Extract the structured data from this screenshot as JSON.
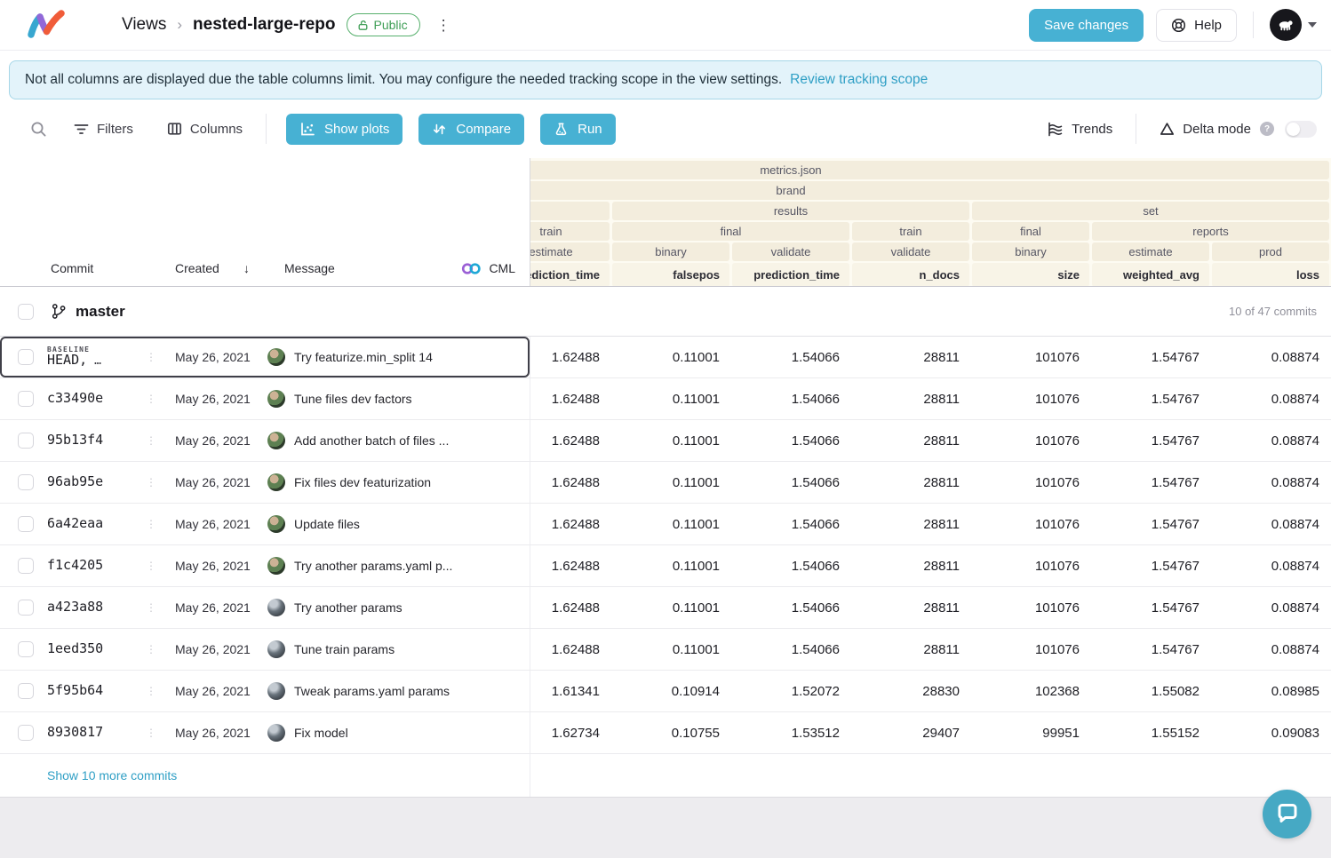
{
  "topbar": {
    "breadcrumb_root": "Views",
    "breadcrumb_separator": "›",
    "repo_name": "nested-large-repo",
    "visibility": "Public",
    "menu_glyph": "⋮",
    "save_button": "Save changes",
    "help_button": "Help"
  },
  "banner": {
    "text": "Not all columns are displayed due the table columns limit. You may configure the needed tracking scope in the view settings.",
    "link": "Review tracking scope"
  },
  "toolbar": {
    "filters": "Filters",
    "columns": "Columns",
    "show_plots": "Show plots",
    "compare": "Compare",
    "run": "Run",
    "trends": "Trends",
    "delta_mode": "Delta mode",
    "delta_toggle_state": "off"
  },
  "table": {
    "left_columns": {
      "commit": "Commit",
      "created": "Created",
      "sort_glyph": "↓",
      "message": "Message",
      "cml": "CML"
    },
    "header": {
      "groups": [
        [
          {
            "label": "metrics.json",
            "span": 7
          }
        ],
        [
          {
            "label": "brand",
            "span": 7
          }
        ],
        [
          {
            "label": "",
            "span": 1
          },
          {
            "label": "results",
            "span": 3
          },
          {
            "label": "set",
            "span": 3
          }
        ],
        [
          {
            "label": "train",
            "span": 1
          },
          {
            "label": "final",
            "span": 2
          },
          {
            "label": "train",
            "span": 1
          },
          {
            "label": "final",
            "span": 1
          },
          {
            "label": "reports",
            "span": 2
          }
        ],
        [
          {
            "label": "estimate",
            "span": 1
          },
          {
            "label": "binary",
            "span": 1
          },
          {
            "label": "validate",
            "span": 1
          },
          {
            "label": "validate",
            "span": 1
          },
          {
            "label": "binary",
            "span": 1
          },
          {
            "label": "estimate",
            "span": 1
          },
          {
            "label": "prod",
            "span": 1
          }
        ]
      ],
      "columns": [
        "prediction_time",
        "falsepos",
        "prediction_time",
        "n_docs",
        "size",
        "weighted_avg",
        "loss"
      ]
    },
    "branch": {
      "name": "master",
      "count_label": "10 of 47 commits"
    },
    "rows": [
      {
        "hash": "HEAD,",
        "tag": "BASELINE",
        "suffix": "…",
        "baseline": true,
        "date": "May 26, 2021",
        "avatar": "photo",
        "message": "Try featurize.min_split 14",
        "values": [
          "1.62488",
          "0.11001",
          "1.54066",
          "28811",
          "101076",
          "1.54767",
          "0.08874"
        ]
      },
      {
        "hash": "c33490e",
        "date": "May 26, 2021",
        "avatar": "photo",
        "message": "Tune files dev factors",
        "values": [
          "1.62488",
          "0.11001",
          "1.54066",
          "28811",
          "101076",
          "1.54767",
          "0.08874"
        ]
      },
      {
        "hash": "95b13f4",
        "date": "May 26, 2021",
        "avatar": "photo",
        "message": "Add another batch of files ...",
        "values": [
          "1.62488",
          "0.11001",
          "1.54066",
          "28811",
          "101076",
          "1.54767",
          "0.08874"
        ]
      },
      {
        "hash": "96ab95e",
        "date": "May 26, 2021",
        "avatar": "photo",
        "message": "Fix files dev featurization",
        "values": [
          "1.62488",
          "0.11001",
          "1.54066",
          "28811",
          "101076",
          "1.54767",
          "0.08874"
        ]
      },
      {
        "hash": "6a42eaa",
        "date": "May 26, 2021",
        "avatar": "photo",
        "message": "Update files",
        "values": [
          "1.62488",
          "0.11001",
          "1.54066",
          "28811",
          "101076",
          "1.54767",
          "0.08874"
        ]
      },
      {
        "hash": "f1c4205",
        "date": "May 26, 2021",
        "avatar": "photo",
        "message": "Try another params.yaml p...",
        "values": [
          "1.62488",
          "0.11001",
          "1.54066",
          "28811",
          "101076",
          "1.54767",
          "0.08874"
        ]
      },
      {
        "hash": "a423a88",
        "date": "May 26, 2021",
        "avatar": "dark",
        "message": "Try another params",
        "values": [
          "1.62488",
          "0.11001",
          "1.54066",
          "28811",
          "101076",
          "1.54767",
          "0.08874"
        ]
      },
      {
        "hash": "1eed350",
        "date": "May 26, 2021",
        "avatar": "dark",
        "message": "Tune train params",
        "values": [
          "1.62488",
          "0.11001",
          "1.54066",
          "28811",
          "101076",
          "1.54767",
          "0.08874"
        ]
      },
      {
        "hash": "5f95b64",
        "date": "May 26, 2021",
        "avatar": "dark",
        "message": "Tweak params.yaml params",
        "values": [
          "1.61341",
          "0.10914",
          "1.52072",
          "28830",
          "102368",
          "1.55082",
          "0.08985"
        ]
      },
      {
        "hash": "8930817",
        "date": "May 26, 2021",
        "avatar": "dark",
        "message": "Fix model",
        "values": [
          "1.62734",
          "0.10755",
          "1.53512",
          "29407",
          "99951",
          "1.55152",
          "0.09083"
        ]
      }
    ],
    "show_more": "Show 10 more commits"
  },
  "icons": {
    "logo": "iterative-studio-logo",
    "search": "search-icon",
    "filters": "filter-icon",
    "columns": "columns-icon",
    "show_plots": "scatter-plot-icon",
    "compare": "git-compare-icon",
    "run": "flask-icon",
    "trends": "trends-icon",
    "delta": "delta-triangle-icon",
    "help": "lifebuoy-icon",
    "public": "unlock-icon",
    "branch": "git-branch-icon",
    "cml": "cml-logo-icon",
    "chat": "chat-bubble-icon"
  },
  "colors": {
    "accent_teal": "#47b1d3",
    "link_teal": "#2f9fc5",
    "badge_green": "#3f9e56",
    "header_beige_cell": "#f3eddd",
    "header_beige_bg": "#fdfbf2",
    "banner_bg": "#e3f3fa"
  }
}
